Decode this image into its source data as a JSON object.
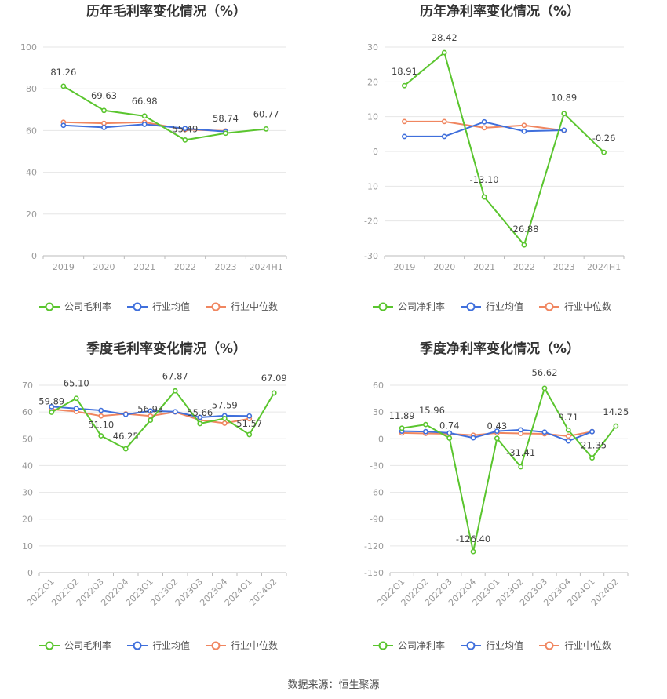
{
  "source_label": "数据来源：恒生聚源",
  "colors": {
    "company": "#5ac52e",
    "avg": "#3f6fdc",
    "median": "#f08660"
  },
  "chart_data": [
    {
      "type": "line",
      "title": "历年毛利率变化情况（%）",
      "categories": [
        "2019",
        "2020",
        "2021",
        "2022",
        "2023",
        "2024H1"
      ],
      "ylim": [
        0,
        100
      ],
      "yticks": [
        0,
        20,
        40,
        60,
        80,
        100
      ],
      "grid": true,
      "legend_position": "bottom",
      "series": [
        {
          "name": "公司毛利率",
          "key": "company",
          "values": [
            81.26,
            69.63,
            66.98,
            55.49,
            58.74,
            60.77
          ],
          "labels": [
            "81.26",
            "69.63",
            "66.98",
            "55.49",
            "58.74",
            "60.77"
          ]
        },
        {
          "name": "行业均值",
          "key": "avg",
          "values": [
            62.5,
            61.5,
            63.0,
            61.0,
            59.5,
            null
          ]
        },
        {
          "name": "行业中位数",
          "key": "median",
          "values": [
            64.0,
            63.5,
            64.0,
            60.5,
            59.8,
            null
          ]
        }
      ]
    },
    {
      "type": "line",
      "title": "历年净利率变化情况（%）",
      "categories": [
        "2019",
        "2020",
        "2021",
        "2022",
        "2023",
        "2024H1"
      ],
      "ylim": [
        -30,
        30
      ],
      "yticks": [
        -30,
        -20,
        -10,
        0,
        10,
        20,
        30
      ],
      "grid": true,
      "legend_position": "bottom",
      "series": [
        {
          "name": "公司净利率",
          "key": "company",
          "values": [
            18.91,
            28.42,
            -13.1,
            -26.88,
            10.89,
            -0.26
          ],
          "labels": [
            "18.91",
            "28.42",
            "-13.10",
            "-26.88",
            "10.89",
            "-0.26"
          ]
        },
        {
          "name": "行业均值",
          "key": "avg",
          "values": [
            4.3,
            4.3,
            8.5,
            5.8,
            6.1,
            null
          ]
        },
        {
          "name": "行业中位数",
          "key": "median",
          "values": [
            8.6,
            8.6,
            6.8,
            7.5,
            6.0,
            null
          ]
        }
      ]
    },
    {
      "type": "line",
      "title": "季度毛利率变化情况（%）",
      "categories": [
        "2022Q1",
        "2022Q2",
        "2022Q3",
        "2022Q4",
        "2023Q1",
        "2023Q2",
        "2023Q3",
        "2023Q4",
        "2024Q1",
        "2024Q2"
      ],
      "ylim": [
        0,
        70
      ],
      "yticks": [
        0,
        10,
        20,
        30,
        40,
        50,
        60,
        70
      ],
      "grid": true,
      "legend_position": "bottom",
      "series": [
        {
          "name": "公司毛利率",
          "key": "company",
          "values": [
            59.89,
            65.1,
            51.1,
            46.25,
            56.93,
            67.87,
            55.66,
            57.59,
            51.57,
            67.09
          ],
          "labels": [
            "59.89",
            "65.10",
            "51.10",
            "46.25",
            "56.93",
            "67.87",
            "55.66",
            "57.59",
            "51.57",
            "67.09"
          ]
        },
        {
          "name": "行业均值",
          "key": "avg",
          "values": [
            62.0,
            61.3,
            60.6,
            59.1,
            60.4,
            60.1,
            58.0,
            58.6,
            58.5,
            null
          ]
        },
        {
          "name": "行业中位数",
          "key": "median",
          "values": [
            61.0,
            60.2,
            58.5,
            59.3,
            58.5,
            60.0,
            57.0,
            55.8,
            57.5,
            null
          ]
        }
      ]
    },
    {
      "type": "line",
      "title": "季度净利率变化情况（%）",
      "categories": [
        "2022Q1",
        "2022Q2",
        "2022Q3",
        "2022Q4",
        "2023Q1",
        "2023Q2",
        "2023Q3",
        "2023Q4",
        "2024Q1",
        "2024Q2"
      ],
      "ylim": [
        -150,
        60
      ],
      "yticks": [
        -150,
        -120,
        -90,
        -60,
        -30,
        0,
        30,
        60
      ],
      "grid": true,
      "legend_position": "bottom",
      "series": [
        {
          "name": "公司净利率",
          "key": "company",
          "values": [
            11.89,
            15.96,
            0.74,
            -126.4,
            0.43,
            -31.41,
            56.62,
            9.71,
            -21.35,
            14.25
          ],
          "labels": [
            "11.89",
            "15.96",
            "0.74",
            "-126.40",
            "0.43",
            "-31.41",
            "56.62",
            "9.71",
            "-21.35",
            "14.25"
          ]
        },
        {
          "name": "行业均值",
          "key": "avg",
          "values": [
            8.5,
            8.0,
            6.5,
            1.0,
            8.5,
            10.0,
            7.5,
            -2.5,
            8.0,
            null
          ]
        },
        {
          "name": "行业中位数",
          "key": "median",
          "values": [
            6.5,
            6.0,
            5.5,
            4.0,
            6.5,
            6.0,
            5.5,
            3.0,
            8.0,
            null
          ]
        }
      ]
    }
  ]
}
